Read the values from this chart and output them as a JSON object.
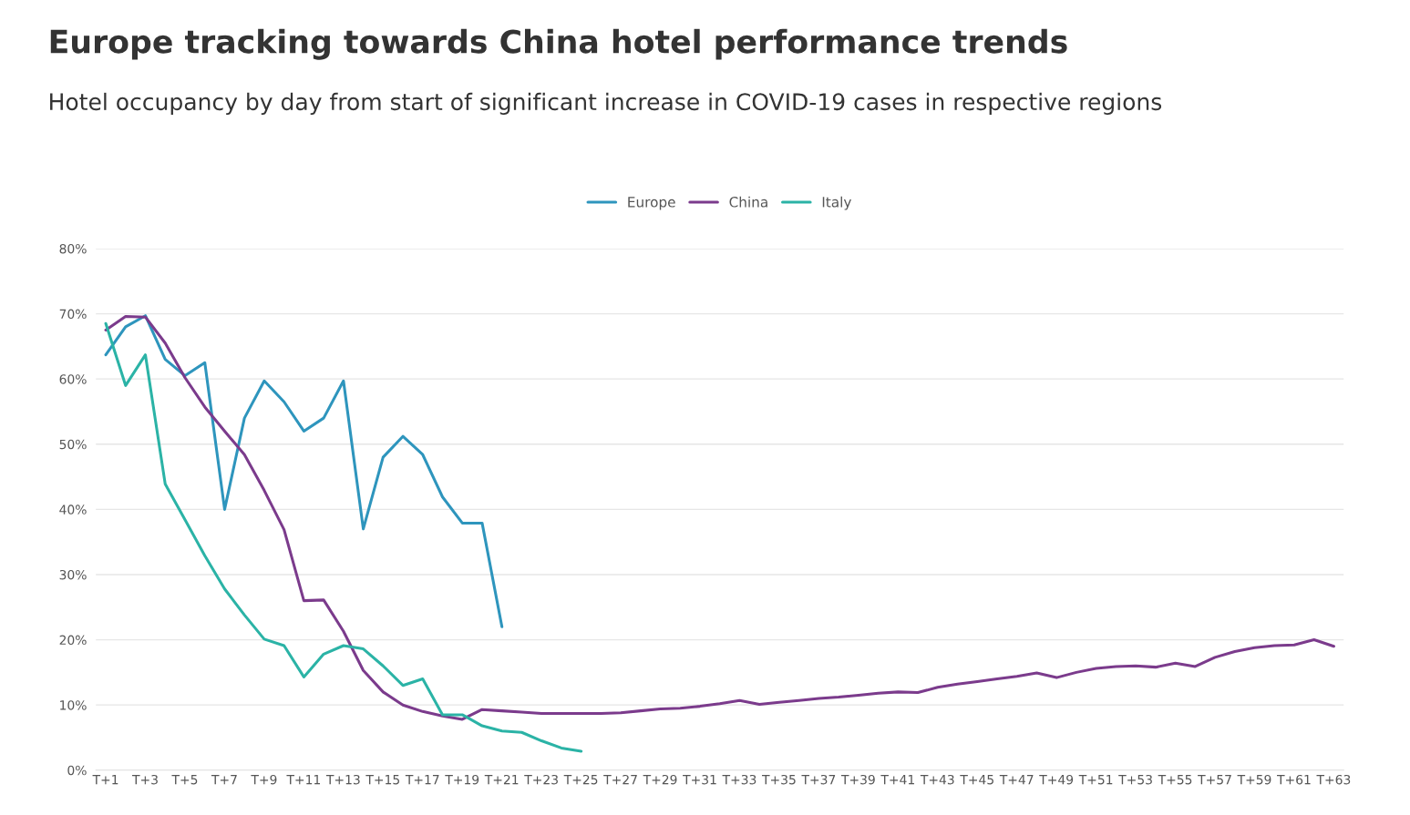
{
  "chart_data": {
    "type": "line",
    "title": "Europe tracking towards China hotel performance trends",
    "subtitle": "Hotel occupancy by day from start of significant increase in COVID-19 cases in respective regions",
    "categories": [
      "T+1",
      null,
      "T+3",
      null,
      "T+5",
      null,
      "T+7",
      null,
      "T+9",
      null,
      "T+11",
      null,
      "T+13",
      null,
      "T+15",
      null,
      "T+17",
      null,
      "T+19",
      null,
      "T+21",
      null,
      "T+23",
      null,
      "T+25",
      null,
      "T+27",
      null,
      "T+29",
      null,
      "T+31",
      null,
      "T+33",
      null,
      "T+35",
      null,
      "T+37",
      null,
      "T+39",
      null,
      "T+41",
      null,
      "T+43",
      null,
      "T+45",
      null,
      "T+47",
      null,
      "T+49",
      null,
      "T+51",
      null,
      "T+53",
      null,
      "T+55",
      null,
      "T+57",
      null,
      "T+59",
      null,
      "T+61",
      null,
      "T+63"
    ],
    "series": [
      {
        "name": "Europe",
        "color": "#2e95bd",
        "values": [
          63.7,
          68,
          69.7,
          63,
          60.5,
          62.5,
          40,
          54,
          59.7,
          56.5,
          52,
          54,
          59.7,
          37,
          48,
          51.2,
          48.4,
          41.9,
          37.9,
          37.9,
          22,
          null,
          null,
          null,
          null,
          null,
          null,
          null,
          null,
          null,
          null,
          null,
          null,
          null,
          null,
          null,
          null,
          null,
          null,
          null,
          null,
          null,
          null,
          null,
          null,
          null,
          null,
          null,
          null,
          null,
          null,
          null,
          null,
          null,
          null,
          null,
          null,
          null,
          null,
          null,
          null,
          null,
          null
        ]
      },
      {
        "name": "China",
        "color": "#7b3b8c",
        "values": [
          67.5,
          69.6,
          69.5,
          65.5,
          60.2,
          55.7,
          52,
          48.4,
          42.9,
          36.9,
          26,
          26.1,
          21.3,
          15.3,
          12,
          10,
          9,
          8.3,
          7.8,
          9.3,
          9.1,
          8.9,
          8.7,
          8.7,
          8.7,
          8.7,
          8.8,
          9.1,
          9.4,
          9.5,
          9.8,
          10.2,
          10.7,
          10.1,
          10.4,
          10.7,
          11,
          11.2,
          11.5,
          11.8,
          12,
          11.9,
          12.7,
          13.2,
          13.6,
          14,
          14.4,
          14.9,
          14.2,
          15,
          15.6,
          15.9,
          16,
          15.8,
          16.4,
          15.9,
          17.3,
          18.2,
          18.8,
          19.1,
          19.2,
          20,
          19
        ]
      },
      {
        "name": "Italy",
        "color": "#2bb3a6",
        "values": [
          68.5,
          59,
          63.7,
          43.9,
          38.4,
          32.9,
          27.8,
          23.8,
          20.1,
          19.1,
          14.3,
          17.8,
          19.1,
          18.6,
          16,
          13,
          14,
          8.5,
          8.5,
          6.8,
          6,
          5.8,
          4.5,
          3.4,
          2.9,
          null,
          null,
          null,
          null,
          null,
          null,
          null,
          null,
          null,
          null,
          null,
          null,
          null,
          null,
          null,
          null,
          null,
          null,
          null,
          null,
          null,
          null,
          null,
          null,
          null,
          null,
          null,
          null,
          null,
          null,
          null,
          null,
          null,
          null,
          null,
          null,
          null,
          null
        ]
      }
    ],
    "ylim": [
      0,
      80
    ],
    "yticks": [
      {
        "value": 0,
        "label": "0%"
      },
      {
        "value": 10,
        "label": "10%"
      },
      {
        "value": 20,
        "label": "20%"
      },
      {
        "value": 30,
        "label": "30%"
      },
      {
        "value": 40,
        "label": "40%"
      },
      {
        "value": 50,
        "label": "50%"
      },
      {
        "value": 60,
        "label": "60%"
      },
      {
        "value": 70,
        "label": "70%"
      },
      {
        "value": 80,
        "label": "80%"
      }
    ],
    "grid": "y",
    "legend": "top"
  }
}
